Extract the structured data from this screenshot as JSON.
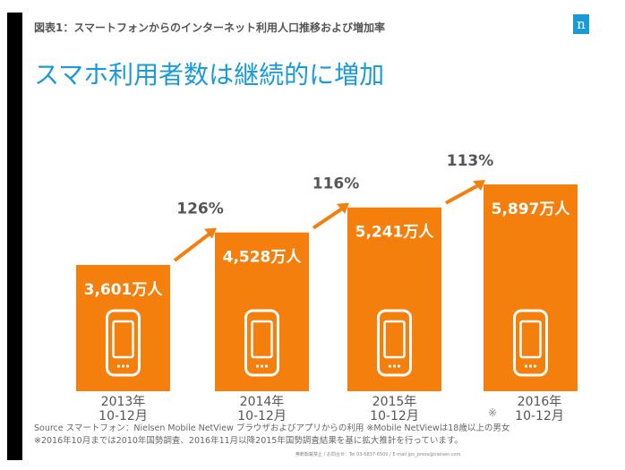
{
  "subtitle": "図表1：スマートフォンからのインターネット利用人口推移および増加率",
  "logo": "n",
  "title": "スマホ利用者数は継続的に増加",
  "chart_data": {
    "type": "bar",
    "title": "スマホ利用者数は継続的に増加",
    "unit": "万人",
    "categories": [
      [
        "2013年",
        "10-12月"
      ],
      [
        "2014年",
        "10-12月"
      ],
      [
        "2015年",
        "10-12月"
      ],
      [
        "2016年",
        "10-12月"
      ]
    ],
    "values": [
      3601,
      4528,
      5241,
      5897
    ],
    "value_labels": [
      "3,601万人",
      "4,528万人",
      "5,241万人",
      "5,897万人"
    ],
    "growth_labels": [
      "126%",
      "116%",
      "113%"
    ],
    "bar_color": "#f47f0d",
    "growth_color": "#555555",
    "ylim": [
      0,
      6000
    ]
  },
  "note_mark": "※",
  "source_line1": "Source  スマートフォン：Nielsen Mobile NetView ブラウザおよびアプリからの利用  ※Mobile NetViewは18歳以上の男女",
  "source_line2": "※2016年10月までは2010年国勢調査、2016年11月以降2015年国勢調査結果を基に拡大推計を行っています。",
  "contact": "無断転載禁止 / お問合せ：Tel 03-6837-6500 / E-mail jpn_press@nielsen.com"
}
